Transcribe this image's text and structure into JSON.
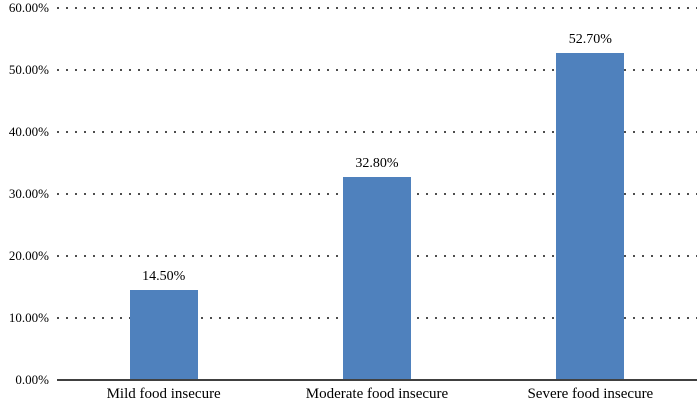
{
  "chart_data": {
    "type": "bar",
    "categories": [
      "Mild food insecure",
      "Moderate food insecure",
      "Severe food insecure"
    ],
    "values": [
      14.5,
      32.8,
      52.7
    ],
    "value_labels": [
      "14.50%",
      "32.80%",
      "52.70%"
    ],
    "title": "",
    "xlabel": "",
    "ylabel": "",
    "ylim": [
      0,
      60
    ],
    "y_ticks": [
      {
        "value": 0,
        "label": "0.00%"
      },
      {
        "value": 10,
        "label": "10.00%"
      },
      {
        "value": 20,
        "label": "20.00%"
      },
      {
        "value": 30,
        "label": "30.00%"
      },
      {
        "value": 40,
        "label": "40.00%"
      },
      {
        "value": 50,
        "label": "50.00%"
      },
      {
        "value": 60,
        "label": "60.00%"
      }
    ],
    "grid": "horizontal-dotted",
    "legend": "none",
    "colors": {
      "bar": "#4f81bd",
      "axis": "#404040",
      "gridline": "#4d4d4d",
      "text": "#000000",
      "background": "#ffffff"
    }
  }
}
